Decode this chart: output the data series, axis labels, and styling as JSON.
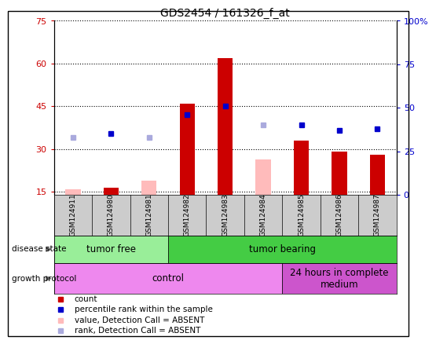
{
  "title": "GDS2454 / 161326_f_at",
  "samples": [
    "GSM124911",
    "GSM124980",
    "GSM124981",
    "GSM124982",
    "GSM124983",
    "GSM124984",
    "GSM124985",
    "GSM124986",
    "GSM124987"
  ],
  "count_values": [
    null,
    16.5,
    null,
    46,
    62,
    null,
    33,
    29,
    28
  ],
  "count_absent_values": [
    16,
    null,
    19,
    null,
    null,
    26.5,
    null,
    null,
    null
  ],
  "rank_values": [
    null,
    35,
    null,
    46,
    51,
    null,
    40,
    37,
    38
  ],
  "rank_absent_values": [
    33,
    null,
    33,
    null,
    null,
    40,
    null,
    null,
    null
  ],
  "ylim_left": [
    14,
    75
  ],
  "ylim_right": [
    0,
    100
  ],
  "yticks_left": [
    15,
    30,
    45,
    60,
    75
  ],
  "yticks_right": [
    0,
    25,
    50,
    75,
    100
  ],
  "color_count": "#cc0000",
  "color_count_absent": "#ffbbbb",
  "color_rank": "#0000cc",
  "color_rank_absent": "#aaaadd",
  "disease_state_groups": [
    {
      "label": "tumor free",
      "start": 0,
      "end": 3,
      "color": "#99ee99"
    },
    {
      "label": "tumor bearing",
      "start": 3,
      "end": 9,
      "color": "#44cc44"
    }
  ],
  "growth_protocol_groups": [
    {
      "label": "control",
      "start": 0,
      "end": 6,
      "color": "#ee88ee"
    },
    {
      "label": "24 hours in complete\nmedium",
      "start": 6,
      "end": 9,
      "color": "#cc55cc"
    }
  ],
  "legend_items": [
    {
      "color": "#cc0000",
      "label": "count"
    },
    {
      "color": "#0000cc",
      "label": "percentile rank within the sample"
    },
    {
      "color": "#ffbbbb",
      "label": "value, Detection Call = ABSENT"
    },
    {
      "color": "#aaaadd",
      "label": "rank, Detection Call = ABSENT"
    }
  ],
  "bar_width": 0.4,
  "background_color": "#ffffff"
}
